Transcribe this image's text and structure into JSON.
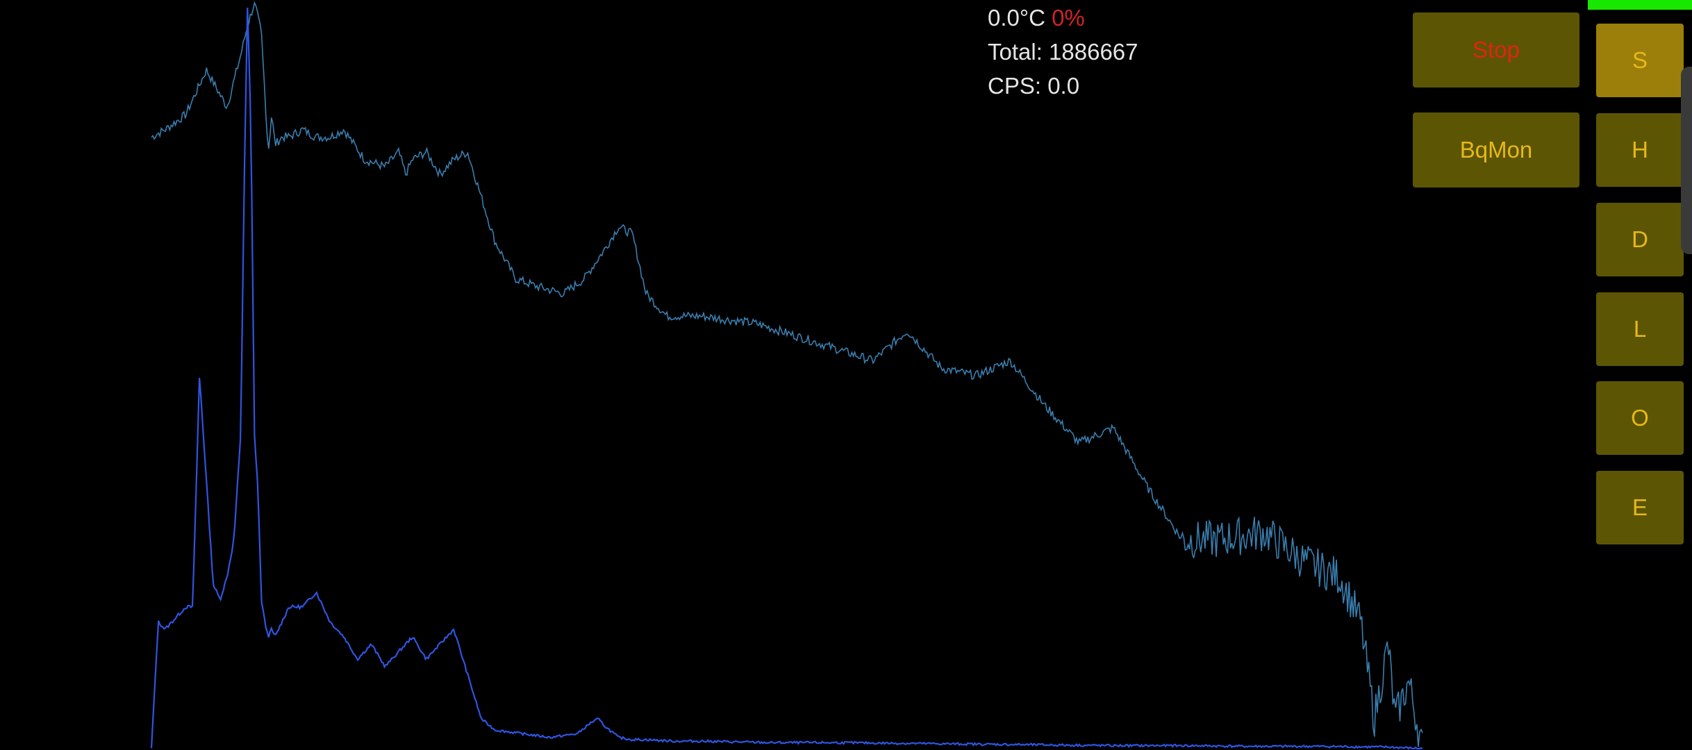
{
  "status": {
    "temperature": "0.0°C",
    "percent": "0%",
    "total": "Total: 1886667",
    "cps": "CPS: 0.0"
  },
  "buttons": {
    "stop": "Stop",
    "bqmon": "BqMon"
  },
  "side_buttons": [
    "S",
    "H",
    "D",
    "L",
    "O",
    "E"
  ],
  "colors": {
    "background": "#000000",
    "log_trace": "#3a7fb0",
    "linear_trace": "#2f55e0",
    "button_fill": "#5c5604",
    "button_active": "#9b7f0a",
    "button_text": "#e8b81a",
    "stop_text": "#e02414",
    "percent_text": "#d02424",
    "battery": "#18e800"
  },
  "icons": {
    "battery_indicator": "battery-bar-icon",
    "edge_panel": "edge-handle-icon"
  },
  "active_side_button": "S",
  "chart_data": {
    "type": "line",
    "title": "",
    "xlabel": "",
    "ylabel": "",
    "grid": false,
    "legend": "none",
    "series": [
      {
        "scale": "log",
        "x": [
          0,
          2,
          5,
          8,
          11,
          13,
          14,
          15,
          16,
          16.5,
          17,
          17.5,
          18,
          19,
          20,
          22,
          24,
          26,
          28,
          31,
          34,
          36,
          37,
          38,
          40,
          42,
          44,
          46,
          48,
          50,
          53,
          56,
          60,
          63,
          66,
          68,
          70,
          72,
          75,
          80,
          88,
          95,
          105,
          110,
          115,
          120,
          125,
          130,
          135,
          140,
          145,
          150,
          155,
          162,
          168,
          173,
          176,
          178,
          180,
          181,
          183,
          185
        ],
        "y": [
          0.82,
          0.83,
          0.85,
          0.91,
          0.86,
          0.93,
          0.97,
          1.0,
          0.96,
          0.88,
          0.8,
          0.85,
          0.81,
          0.82,
          0.82,
          0.83,
          0.82,
          0.82,
          0.83,
          0.79,
          0.78,
          0.8,
          0.77,
          0.79,
          0.8,
          0.77,
          0.79,
          0.8,
          0.74,
          0.68,
          0.63,
          0.62,
          0.61,
          0.63,
          0.67,
          0.7,
          0.69,
          0.61,
          0.58,
          0.58,
          0.57,
          0.55,
          0.52,
          0.56,
          0.51,
          0.5,
          0.52,
          0.46,
          0.41,
          0.43,
          0.35,
          0.28,
          0.28,
          0.29,
          0.25,
          0.23,
          0.17,
          0.04,
          0.14,
          0.04,
          0.09,
          0.0
        ]
      },
      {
        "scale": "linear",
        "x": [
          0,
          1,
          2,
          3,
          4,
          5,
          6,
          7,
          8,
          9,
          10,
          11,
          12,
          13,
          13.5,
          14,
          14.5,
          15,
          15.5,
          16,
          16.5,
          17,
          17.5,
          18,
          19,
          20,
          22,
          24,
          26,
          28,
          30,
          32,
          34,
          36,
          38,
          40,
          42,
          44,
          46,
          48,
          50,
          54,
          58,
          62,
          64,
          65,
          66,
          68,
          70,
          72,
          76,
          80,
          90,
          100,
          110,
          120,
          130,
          140,
          150,
          160,
          170,
          180,
          185
        ],
        "y": [
          0.0,
          0.17,
          0.16,
          0.17,
          0.18,
          0.19,
          0.19,
          0.5,
          0.36,
          0.22,
          0.2,
          0.23,
          0.28,
          0.42,
          0.76,
          1.0,
          0.82,
          0.42,
          0.35,
          0.2,
          0.17,
          0.15,
          0.16,
          0.15,
          0.17,
          0.19,
          0.19,
          0.21,
          0.17,
          0.15,
          0.12,
          0.14,
          0.11,
          0.13,
          0.15,
          0.12,
          0.14,
          0.16,
          0.1,
          0.04,
          0.025,
          0.02,
          0.015,
          0.02,
          0.035,
          0.04,
          0.03,
          0.015,
          0.012,
          0.012,
          0.01,
          0.01,
          0.008,
          0.008,
          0.007,
          0.006,
          0.005,
          0.004,
          0.004,
          0.003,
          0.003,
          0.002,
          0.0
        ]
      }
    ]
  }
}
